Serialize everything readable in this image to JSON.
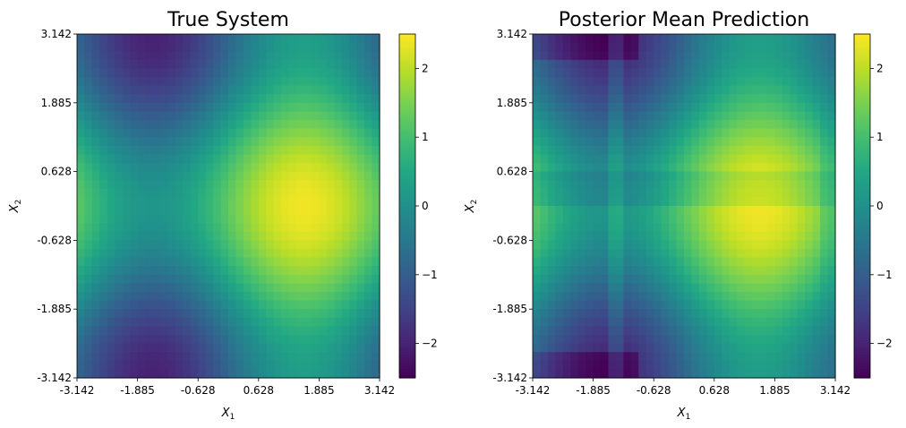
{
  "chart_data": [
    {
      "type": "heatmap",
      "title": "True System",
      "xlabel": "X_1",
      "ylabel": "X_2",
      "xlim": [
        -3.142,
        3.142
      ],
      "ylim": [
        -3.142,
        3.142
      ],
      "x_ticks": [
        "-3.142",
        "-1.885",
        "-0.628",
        "0.628",
        "1.885",
        "3.142"
      ],
      "y_ticks": [
        "-3.142",
        "-1.885",
        "-0.628",
        "0.628",
        "1.885",
        "3.142"
      ],
      "grid_resolution": 40,
      "colormap": "viridis",
      "colorbar": {
        "range": [
          -2.5,
          2.5
        ],
        "ticks": [
          "−2",
          "−1",
          "0",
          "1",
          "2"
        ]
      },
      "features": [
        {
          "kind": "peak",
          "x": 1.7,
          "y": 0.0,
          "value": 2.2
        },
        {
          "kind": "trough",
          "x": -1.6,
          "y": 2.9,
          "value": -2.0
        },
        {
          "kind": "trough",
          "x": -1.6,
          "y": -2.9,
          "value": -2.0
        },
        {
          "kind": "moderate",
          "x": -3.1,
          "y": 0.0,
          "value": 0.8
        }
      ]
    },
    {
      "type": "heatmap",
      "title": "Posterior Mean Prediction",
      "xlabel": "X_1",
      "ylabel": "X_2",
      "xlim": [
        -3.142,
        3.142
      ],
      "ylim": [
        -3.142,
        3.142
      ],
      "x_ticks": [
        "-3.142",
        "-1.885",
        "-0.628",
        "0.628",
        "1.885",
        "3.142"
      ],
      "y_ticks": [
        "-3.142",
        "-1.885",
        "-0.628",
        "0.628",
        "1.885",
        "3.142"
      ],
      "grid_resolution": 40,
      "colormap": "viridis",
      "colorbar": {
        "range": [
          -2.5,
          2.5
        ],
        "ticks": [
          "−2",
          "−1",
          "0",
          "1",
          "2"
        ]
      },
      "features": [
        {
          "kind": "peak",
          "x": 1.7,
          "y": 0.0,
          "value": 2.1
        },
        {
          "kind": "trough",
          "x": -1.9,
          "y": 3.0,
          "value": -2.5
        },
        {
          "kind": "trough",
          "x": -1.6,
          "y": -3.0,
          "value": -2.5
        },
        {
          "kind": "artifact",
          "description": "blocky cross-shaped structure near X_1 = -1.4 and X_2 = 0"
        }
      ]
    }
  ]
}
